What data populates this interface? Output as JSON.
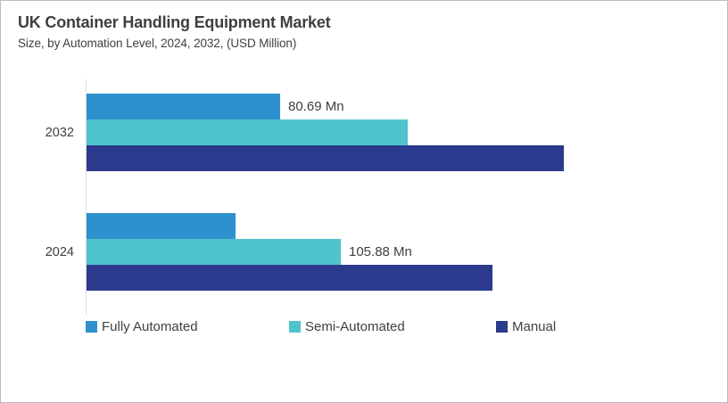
{
  "chart_data": {
    "type": "bar",
    "orientation": "horizontal",
    "title": "UK Container Handling Equipment Market",
    "subtitle": "Size, by Automation Level, 2024, 2032, (USD Million)",
    "unit": "USD Million",
    "categories": [
      "2032",
      "2024"
    ],
    "series": [
      {
        "name": "Fully Automated",
        "color": "#2e91ce",
        "values": [
          80.69,
          62
        ],
        "data_labels": [
          "80.69 Mn",
          null
        ]
      },
      {
        "name": "Semi-Automated",
        "color": "#4fc3cd",
        "values": [
          134,
          105.88
        ],
        "data_labels": [
          null,
          "105.88 Mn"
        ]
      },
      {
        "name": "Manual",
        "color": "#2b3a8d",
        "values": [
          199,
          169
        ],
        "data_labels": [
          null,
          null
        ]
      }
    ],
    "value_axis": {
      "min": 0,
      "max": 210,
      "gridlines": false,
      "tick_labels_visible": false
    },
    "legend": {
      "position": "bottom",
      "entries": [
        "Fully Automated",
        "Semi-Automated",
        "Manual"
      ]
    },
    "colors": {
      "text": "#3f3f3f",
      "axis_line": "#d9d9d9",
      "panel_border": "#bdbdbd"
    }
  }
}
